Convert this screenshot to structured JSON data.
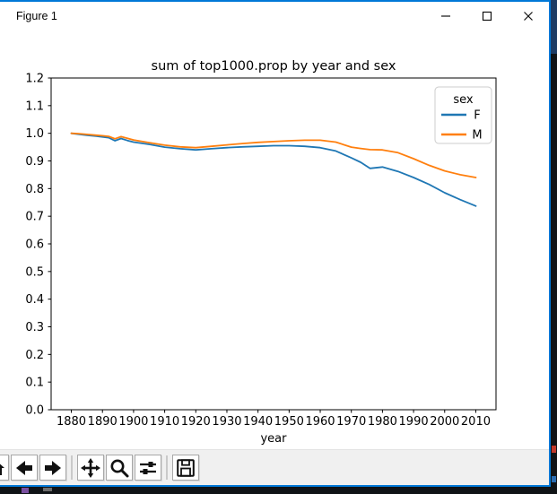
{
  "window": {
    "title": "Figure 1",
    "controls": [
      {
        "name": "minimize",
        "icon": "minimize-icon"
      },
      {
        "name": "maximize",
        "icon": "maximize-icon"
      },
      {
        "name": "close",
        "icon": "close-icon"
      }
    ]
  },
  "toolbar": {
    "buttons": [
      {
        "name": "home",
        "icon": "home-icon"
      },
      {
        "name": "back",
        "icon": "back-arrow-icon"
      },
      {
        "name": "forward",
        "icon": "forward-arrow-icon"
      },
      {
        "name": "pan",
        "icon": "pan-arrows-icon"
      },
      {
        "name": "zoom",
        "icon": "magnifier-icon"
      },
      {
        "name": "configure-subplots",
        "icon": "sliders-icon"
      },
      {
        "name": "save",
        "icon": "floppy-disk-icon"
      }
    ]
  },
  "chart_data": {
    "type": "line",
    "title": "sum of top1000.prop by year and sex",
    "xlabel": "year",
    "ylabel": "",
    "legend_title": "sex",
    "legend_position": "upper right",
    "grid": false,
    "xlim": [
      1873.5,
      2016.5
    ],
    "ylim": [
      0.0,
      1.2
    ],
    "xticks": [
      1880,
      1890,
      1900,
      1910,
      1920,
      1930,
      1940,
      1950,
      1960,
      1970,
      1980,
      1990,
      2000,
      2010
    ],
    "yticks": [
      0.0,
      0.1,
      0.2,
      0.3,
      0.4,
      0.5,
      0.6,
      0.7,
      0.8,
      0.9,
      1.0,
      1.1,
      1.2
    ],
    "x": [
      1880,
      1882,
      1885,
      1888,
      1890,
      1892,
      1894,
      1896,
      1898,
      1900,
      1905,
      1910,
      1915,
      1920,
      1925,
      1930,
      1935,
      1940,
      1945,
      1950,
      1955,
      1960,
      1965,
      1970,
      1973,
      1976,
      1980,
      1985,
      1990,
      1995,
      2000,
      2005,
      2010
    ],
    "series": [
      {
        "name": "F",
        "color": "#1f77b4",
        "values": [
          1.0,
          0.997,
          0.993,
          0.99,
          0.987,
          0.984,
          0.973,
          0.981,
          0.974,
          0.968,
          0.96,
          0.95,
          0.944,
          0.94,
          0.944,
          0.948,
          0.951,
          0.953,
          0.955,
          0.955,
          0.953,
          0.948,
          0.936,
          0.911,
          0.895,
          0.873,
          0.878,
          0.862,
          0.84,
          0.815,
          0.785,
          0.76,
          0.737
        ]
      },
      {
        "name": "M",
        "color": "#ff7f0e",
        "values": [
          1.0,
          0.999,
          0.996,
          0.993,
          0.991,
          0.989,
          0.98,
          0.988,
          0.982,
          0.976,
          0.966,
          0.957,
          0.951,
          0.948,
          0.953,
          0.958,
          0.963,
          0.967,
          0.97,
          0.973,
          0.975,
          0.975,
          0.968,
          0.95,
          0.945,
          0.941,
          0.94,
          0.93,
          0.908,
          0.884,
          0.864,
          0.85,
          0.84
        ]
      }
    ],
    "axis_color": "#000000",
    "tick_label_color": "#000000"
  }
}
